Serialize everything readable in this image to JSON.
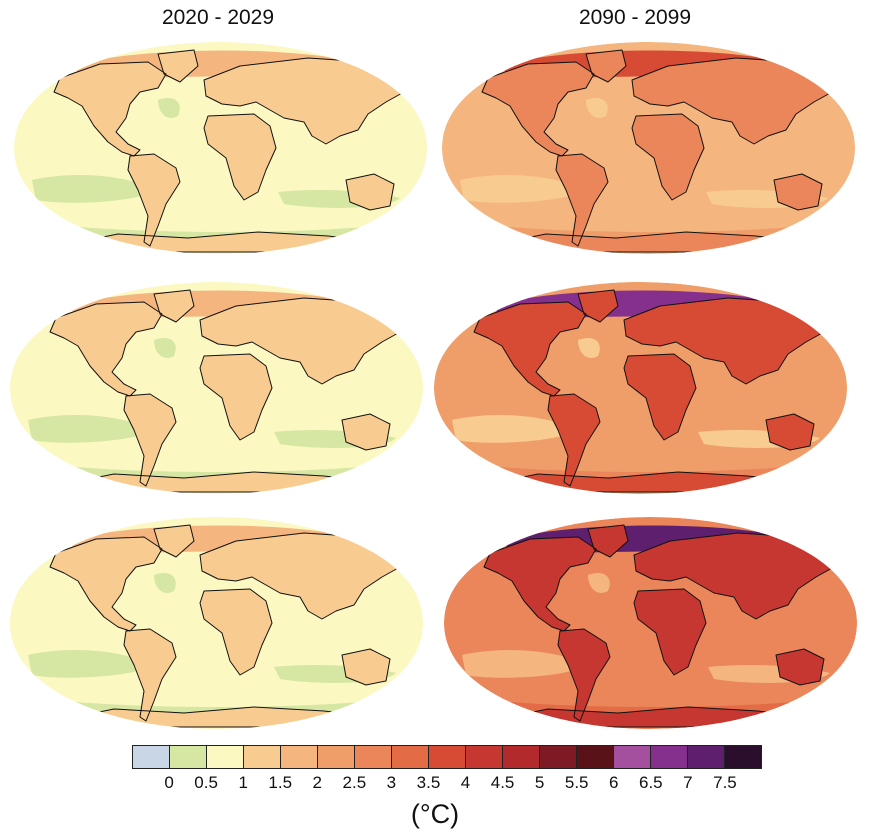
{
  "columns": [
    "2020 - 2029",
    "2090 - 2099"
  ],
  "colorbar": {
    "colors": [
      "#c9d6e6",
      "#d6e6a3",
      "#fbf8c2",
      "#f8cc91",
      "#f4b57f",
      "#ef9e6a",
      "#ea8659",
      "#e36b45",
      "#d74b35",
      "#c73731",
      "#b32a2c",
      "#7e1a23",
      "#5a1219",
      "#a5509f",
      "#86308e",
      "#5e1f6e",
      "#2a0e2c"
    ],
    "tick_labels": [
      "0",
      "0.5",
      "1",
      "1.5",
      "2",
      "2.5",
      "3",
      "3.5",
      "4",
      "4.5",
      "5",
      "5.5",
      "6",
      "6.5",
      "7",
      "7.5"
    ],
    "unit": "(°C)"
  },
  "panels": [
    {
      "id": "row1-left",
      "base": "#fbf8c2",
      "land": "#f8cc91",
      "north": "#f4b57f",
      "ocean_patches": "#d6e6a3",
      "south_band": "#d6e6a3"
    },
    {
      "id": "row1-right",
      "base": "#f4b57f",
      "land": "#ea8659",
      "north": "#d74b35",
      "ocean_patches": "#f8cc91",
      "south_band": "#ef9e6a"
    },
    {
      "id": "row2-left",
      "base": "#fbf8c2",
      "land": "#f8cc91",
      "north": "#f4b57f",
      "ocean_patches": "#d6e6a3",
      "south_band": "#d6e6a3"
    },
    {
      "id": "row2-right",
      "base": "#ef9e6a",
      "land": "#d74b35",
      "north": "#86308e",
      "ocean_patches": "#f8cc91",
      "south_band": "#ea8659"
    },
    {
      "id": "row3-left",
      "base": "#fbf8c2",
      "land": "#f8cc91",
      "north": "#f4b57f",
      "ocean_patches": "#d6e6a3",
      "south_band": "#d6e6a3"
    },
    {
      "id": "row3-right",
      "base": "#ea8659",
      "land": "#c73731",
      "north": "#5e1f6e",
      "ocean_patches": "#f4b57f",
      "south_band": "#e36b45"
    }
  ]
}
